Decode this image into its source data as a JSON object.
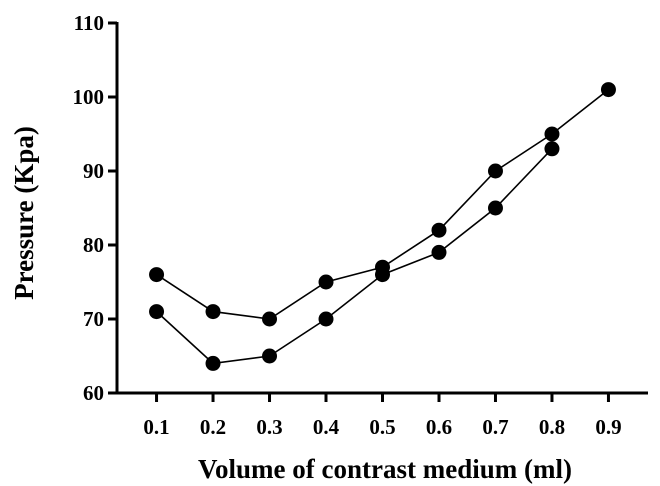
{
  "chart_data": {
    "type": "line",
    "title": "",
    "xlabel": "Volume of contrast medium (ml)",
    "ylabel": "Pressure (Kpa)",
    "x": [
      0.1,
      0.2,
      0.3,
      0.4,
      0.5,
      0.6,
      0.7,
      0.8,
      0.9
    ],
    "x_tick_labels": [
      "0.1",
      "0.2",
      "0.3",
      "0.4",
      "0.5",
      "0.6",
      "0.7",
      "0.8",
      "0.9"
    ],
    "y_tick_labels": [
      "60",
      "70",
      "80",
      "90",
      "100",
      "110"
    ],
    "xlim": [
      0.03,
      0.97
    ],
    "ylim": [
      60,
      110
    ],
    "y_ticks": [
      60,
      70,
      80,
      90,
      100,
      110
    ],
    "grid": false,
    "legend": "none",
    "series": [
      {
        "x": [
          0.1,
          0.2,
          0.3,
          0.4,
          0.5,
          0.6,
          0.7,
          0.8,
          0.9
        ],
        "values": [
          76,
          71,
          70,
          75,
          77,
          82,
          90,
          95,
          101
        ]
      },
      {
        "x": [
          0.1,
          0.2,
          0.3,
          0.4,
          0.5,
          0.6,
          0.7,
          0.8
        ],
        "values": [
          71,
          64,
          65,
          70,
          76,
          79,
          85,
          93
        ]
      }
    ],
    "colors": {
      "line": "#000000",
      "marker": "#000000"
    }
  }
}
